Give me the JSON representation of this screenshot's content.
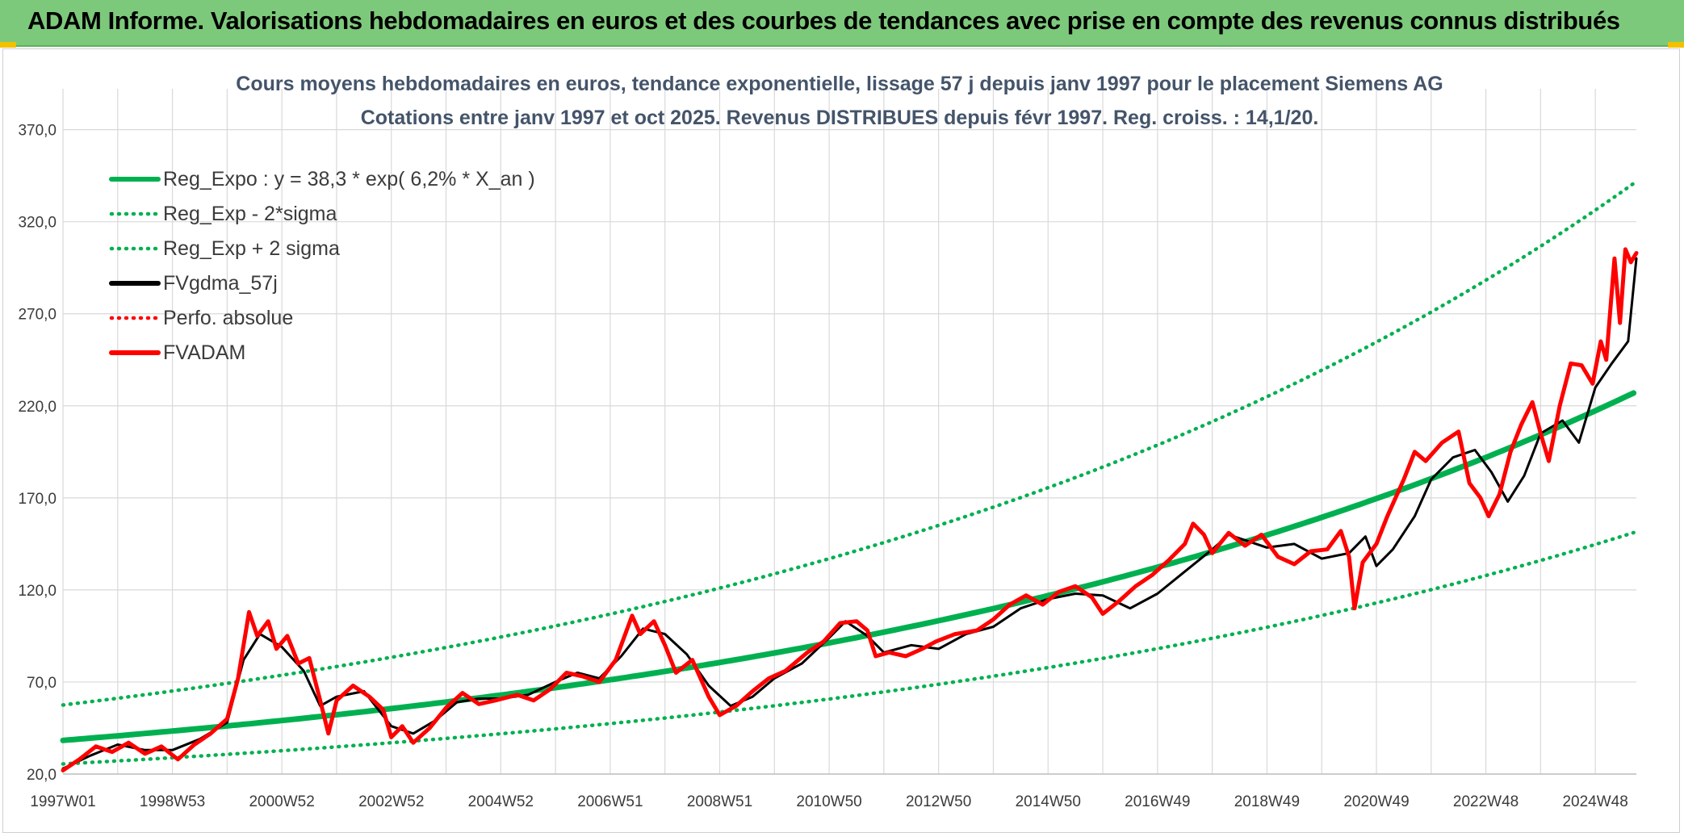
{
  "banner": {
    "text": "ADAM Informe. Valorisations hebdomadaires en euros et des courbes de tendances avec prise en compte des revenus connus distribués",
    "background": "#7dc97b"
  },
  "chart_data": {
    "type": "line",
    "title": [
      "Cours moyens hebdomadaires en euros, tendance exponentielle, lissage 57 j depuis janv 1997 pour le placement Siemens AG",
      "Cotations entre janv 1997 et oct 2025. Revenus DISTRIBUES depuis févr 1997. Reg. croiss. : 14,1/20."
    ],
    "xlabel": "",
    "ylabel": "",
    "xlim": [
      1997.0,
      2025.75
    ],
    "ylim": [
      20,
      390
    ],
    "y_ticks": [
      "20,0",
      "70,0",
      "120,0",
      "170,0",
      "220,0",
      "270,0",
      "320,0",
      "370,0"
    ],
    "x_ticks": [
      {
        "label": "1997W01",
        "x": 1997.0
      },
      {
        "label": "1998W53",
        "x": 1999.0
      },
      {
        "label": "2000W52",
        "x": 2001.0
      },
      {
        "label": "2002W52",
        "x": 2003.0
      },
      {
        "label": "2004W52",
        "x": 2005.0
      },
      {
        "label": "2006W51",
        "x": 2007.0
      },
      {
        "label": "2008W51",
        "x": 2009.0
      },
      {
        "label": "2010W50",
        "x": 2011.0
      },
      {
        "label": "2012W50",
        "x": 2013.0
      },
      {
        "label": "2014W50",
        "x": 2015.0
      },
      {
        "label": "2016W49",
        "x": 2017.0
      },
      {
        "label": "2018W49",
        "x": 2019.0
      },
      {
        "label": "2020W49",
        "x": 2021.0
      },
      {
        "label": "2022W48",
        "x": 2023.0
      },
      {
        "label": "2024W48",
        "x": 2025.0
      }
    ],
    "grid": true,
    "legend_position": "top-left",
    "regression": {
      "a": 38.3,
      "rate": 0.062,
      "sigma_factor": 1.5
    },
    "series": [
      {
        "name": "Reg_Expo : y = 38,3 * exp( 6,2% *  X_an )",
        "color": "#00b050",
        "style": "solid-thick",
        "values": [
          [
            1997.0,
            38.3
          ],
          [
            2000.0,
            46.1
          ],
          [
            2003.0,
            55.5
          ],
          [
            2006.0,
            66.8
          ],
          [
            2009.0,
            80.4
          ],
          [
            2012.0,
            96.8
          ],
          [
            2015.0,
            116.5
          ],
          [
            2018.0,
            140.3
          ],
          [
            2021.0,
            168.9
          ],
          [
            2024.0,
            203.3
          ],
          [
            2025.75,
            227.1
          ]
        ]
      },
      {
        "name": "Reg_Exp - 2*sigma",
        "color": "#00b050",
        "style": "dotted",
        "values": [
          [
            1997.0,
            25.5
          ],
          [
            2000.0,
            30.7
          ],
          [
            2003.0,
            37.0
          ],
          [
            2006.0,
            44.5
          ],
          [
            2009.0,
            53.6
          ],
          [
            2012.0,
            64.5
          ],
          [
            2015.0,
            77.7
          ],
          [
            2018.0,
            93.5
          ],
          [
            2021.0,
            112.6
          ],
          [
            2024.0,
            135.5
          ],
          [
            2025.75,
            151.4
          ]
        ]
      },
      {
        "name": "Reg_Exp + 2 sigma",
        "color": "#00b050",
        "style": "dotted",
        "values": [
          [
            1997.0,
            57.5
          ],
          [
            2000.0,
            69.2
          ],
          [
            2003.0,
            83.3
          ],
          [
            2006.0,
            100.2
          ],
          [
            2009.0,
            120.6
          ],
          [
            2012.0,
            145.2
          ],
          [
            2015.0,
            174.8
          ],
          [
            2018.0,
            210.4
          ],
          [
            2021.0,
            253.3
          ],
          [
            2024.0,
            305.0
          ],
          [
            2025.75,
            340.6
          ]
        ]
      },
      {
        "name": "FVgdma_57j",
        "color": "#000000",
        "style": "solid",
        "values": [
          [
            1997.0,
            23
          ],
          [
            1997.5,
            30
          ],
          [
            1998.0,
            36
          ],
          [
            1998.5,
            33
          ],
          [
            1999.0,
            33
          ],
          [
            1999.5,
            39
          ],
          [
            2000.0,
            48
          ],
          [
            2000.3,
            82
          ],
          [
            2000.6,
            96
          ],
          [
            2001.0,
            89
          ],
          [
            2001.4,
            76
          ],
          [
            2001.7,
            57
          ],
          [
            2002.0,
            62
          ],
          [
            2002.5,
            65
          ],
          [
            2003.0,
            46
          ],
          [
            2003.4,
            42
          ],
          [
            2003.8,
            49
          ],
          [
            2004.2,
            59
          ],
          [
            2004.6,
            61
          ],
          [
            2005.0,
            61
          ],
          [
            2005.5,
            63
          ],
          [
            2006.0,
            70
          ],
          [
            2006.4,
            75
          ],
          [
            2006.8,
            72
          ],
          [
            2007.2,
            84
          ],
          [
            2007.6,
            99
          ],
          [
            2008.0,
            96
          ],
          [
            2008.4,
            85
          ],
          [
            2008.8,
            68
          ],
          [
            2009.2,
            57
          ],
          [
            2009.6,
            62
          ],
          [
            2010.0,
            72
          ],
          [
            2010.5,
            80
          ],
          [
            2011.0,
            94
          ],
          [
            2011.3,
            103
          ],
          [
            2011.7,
            95
          ],
          [
            2012.0,
            86
          ],
          [
            2012.5,
            90
          ],
          [
            2013.0,
            88
          ],
          [
            2013.5,
            96
          ],
          [
            2014.0,
            100
          ],
          [
            2014.5,
            110
          ],
          [
            2015.0,
            115
          ],
          [
            2015.5,
            118
          ],
          [
            2016.0,
            117
          ],
          [
            2016.5,
            110
          ],
          [
            2017.0,
            118
          ],
          [
            2017.5,
            130
          ],
          [
            2018.0,
            142
          ],
          [
            2018.3,
            150
          ],
          [
            2018.7,
            146
          ],
          [
            2019.0,
            143
          ],
          [
            2019.5,
            145
          ],
          [
            2020.0,
            137
          ],
          [
            2020.5,
            140
          ],
          [
            2020.8,
            149
          ],
          [
            2021.0,
            133
          ],
          [
            2021.3,
            142
          ],
          [
            2021.7,
            160
          ],
          [
            2022.0,
            180
          ],
          [
            2022.4,
            192
          ],
          [
            2022.8,
            196
          ],
          [
            2023.1,
            184
          ],
          [
            2023.4,
            168
          ],
          [
            2023.7,
            182
          ],
          [
            2024.0,
            205
          ],
          [
            2024.4,
            212
          ],
          [
            2024.7,
            200
          ],
          [
            2025.0,
            230
          ],
          [
            2025.3,
            243
          ],
          [
            2025.6,
            255
          ],
          [
            2025.75,
            300
          ]
        ]
      },
      {
        "name": "Perfo. absolue",
        "color": "#ff0000",
        "style": "dotted",
        "values": []
      },
      {
        "name": "FVADAM",
        "color": "#ff0000",
        "style": "solid-thick",
        "values": [
          [
            1997.0,
            22
          ],
          [
            1997.3,
            28
          ],
          [
            1997.6,
            35
          ],
          [
            1997.9,
            32
          ],
          [
            1998.2,
            37
          ],
          [
            1998.5,
            31
          ],
          [
            1998.8,
            35
          ],
          [
            1999.1,
            28
          ],
          [
            1999.4,
            36
          ],
          [
            1999.7,
            42
          ],
          [
            2000.0,
            50
          ],
          [
            2000.2,
            72
          ],
          [
            2000.4,
            108
          ],
          [
            2000.55,
            95
          ],
          [
            2000.75,
            103
          ],
          [
            2000.9,
            88
          ],
          [
            2001.1,
            95
          ],
          [
            2001.3,
            80
          ],
          [
            2001.5,
            83
          ],
          [
            2001.7,
            60
          ],
          [
            2001.85,
            42
          ],
          [
            2002.0,
            60
          ],
          [
            2002.3,
            68
          ],
          [
            2002.6,
            62
          ],
          [
            2002.85,
            55
          ],
          [
            2003.0,
            40
          ],
          [
            2003.2,
            46
          ],
          [
            2003.4,
            37
          ],
          [
            2003.7,
            45
          ],
          [
            2004.0,
            56
          ],
          [
            2004.3,
            64
          ],
          [
            2004.6,
            58
          ],
          [
            2004.9,
            60
          ],
          [
            2005.3,
            63
          ],
          [
            2005.6,
            60
          ],
          [
            2005.9,
            66
          ],
          [
            2006.2,
            75
          ],
          [
            2006.5,
            73
          ],
          [
            2006.8,
            70
          ],
          [
            2007.1,
            82
          ],
          [
            2007.4,
            106
          ],
          [
            2007.55,
            96
          ],
          [
            2007.8,
            103
          ],
          [
            2008.0,
            90
          ],
          [
            2008.2,
            75
          ],
          [
            2008.5,
            82
          ],
          [
            2008.8,
            62
          ],
          [
            2009.0,
            52
          ],
          [
            2009.3,
            57
          ],
          [
            2009.6,
            65
          ],
          [
            2009.9,
            72
          ],
          [
            2010.2,
            76
          ],
          [
            2010.6,
            86
          ],
          [
            2010.9,
            92
          ],
          [
            2011.2,
            102
          ],
          [
            2011.5,
            103
          ],
          [
            2011.7,
            98
          ],
          [
            2011.85,
            84
          ],
          [
            2012.1,
            86
          ],
          [
            2012.4,
            84
          ],
          [
            2012.7,
            88
          ],
          [
            2012.95,
            92
          ],
          [
            2013.3,
            96
          ],
          [
            2013.7,
            98
          ],
          [
            2014.0,
            104
          ],
          [
            2014.3,
            112
          ],
          [
            2014.6,
            117
          ],
          [
            2014.9,
            112
          ],
          [
            2015.2,
            119
          ],
          [
            2015.5,
            122
          ],
          [
            2015.8,
            116
          ],
          [
            2016.0,
            107
          ],
          [
            2016.3,
            114
          ],
          [
            2016.6,
            122
          ],
          [
            2016.9,
            128
          ],
          [
            2017.2,
            136
          ],
          [
            2017.5,
            145
          ],
          [
            2017.65,
            156
          ],
          [
            2017.85,
            150
          ],
          [
            2018.0,
            140
          ],
          [
            2018.3,
            151
          ],
          [
            2018.6,
            144
          ],
          [
            2018.9,
            150
          ],
          [
            2019.2,
            138
          ],
          [
            2019.5,
            134
          ],
          [
            2019.8,
            141
          ],
          [
            2020.1,
            142
          ],
          [
            2020.35,
            152
          ],
          [
            2020.5,
            138
          ],
          [
            2020.6,
            110
          ],
          [
            2020.75,
            135
          ],
          [
            2021.0,
            145
          ],
          [
            2021.2,
            160
          ],
          [
            2021.5,
            180
          ],
          [
            2021.7,
            195
          ],
          [
            2021.9,
            190
          ],
          [
            2022.2,
            200
          ],
          [
            2022.5,
            206
          ],
          [
            2022.7,
            178
          ],
          [
            2022.9,
            170
          ],
          [
            2023.05,
            160
          ],
          [
            2023.25,
            172
          ],
          [
            2023.45,
            195
          ],
          [
            2023.65,
            210
          ],
          [
            2023.85,
            222
          ],
          [
            2024.0,
            205
          ],
          [
            2024.15,
            190
          ],
          [
            2024.35,
            220
          ],
          [
            2024.55,
            243
          ],
          [
            2024.75,
            242
          ],
          [
            2024.95,
            232
          ],
          [
            2025.1,
            255
          ],
          [
            2025.2,
            245
          ],
          [
            2025.35,
            300
          ],
          [
            2025.45,
            265
          ],
          [
            2025.55,
            305
          ],
          [
            2025.65,
            298
          ],
          [
            2025.75,
            303
          ]
        ]
      }
    ]
  }
}
